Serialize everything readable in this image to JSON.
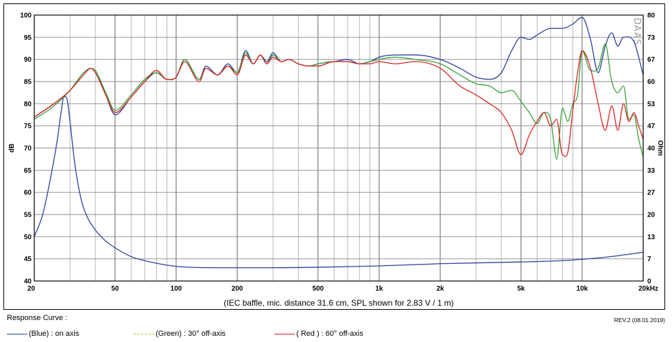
{
  "chart_data": {
    "type": "line",
    "caption": "(IEC baffle, mic. distance 31.6 cm, SPL shown for 2.83 V / 1 m)",
    "watermark": "DAAS",
    "xscale": "log",
    "xlim": [
      20,
      20000
    ],
    "x_ticks": [
      {
        "v": 20,
        "label": "20"
      },
      {
        "v": 50,
        "label": "50"
      },
      {
        "v": 100,
        "label": "100"
      },
      {
        "v": 200,
        "label": "200"
      },
      {
        "v": 500,
        "label": "500"
      },
      {
        "v": 1000,
        "label": "1k"
      },
      {
        "v": 2000,
        "label": "2k"
      },
      {
        "v": 5000,
        "label": "5k"
      },
      {
        "v": 10000,
        "label": "10k"
      },
      {
        "v": 20000,
        "label": "20kHz"
      }
    ],
    "ylabel": "dB",
    "ylim": [
      40,
      100
    ],
    "y_ticks": [
      "40",
      "45",
      "50",
      "55",
      "60",
      "65",
      "70",
      "75",
      "80",
      "85",
      "90",
      "95",
      "100"
    ],
    "y2label": "Ohm",
    "y2_ticks": [
      "0",
      "7",
      "13",
      "20",
      "27",
      "33",
      "40",
      "47",
      "53",
      "60",
      "67",
      "73",
      "80"
    ],
    "series": [
      {
        "name": "impedance",
        "color": "#2a3e9e",
        "x": [
          20,
          22,
          24,
          26,
          27,
          28,
          29,
          30,
          31,
          32,
          34,
          36,
          40,
          45,
          50,
          60,
          70,
          80,
          100,
          150,
          200,
          300,
          500,
          1000,
          2000,
          5000,
          8000,
          10000,
          12000,
          15000,
          20000
        ],
        "y": [
          50,
          55,
          63,
          72,
          77.5,
          81.5,
          81,
          76,
          70,
          65,
          58.5,
          55,
          51.5,
          49,
          47.5,
          45.5,
          44.6,
          44,
          43.3,
          43,
          43,
          43,
          43.1,
          43.4,
          43.9,
          44.3,
          44.6,
          44.9,
          45.2,
          45.7,
          46.5
        ]
      },
      {
        "name": "Blue",
        "color": "#2a3e9e",
        "x": [
          20,
          25,
          30,
          35,
          38,
          40,
          45,
          50,
          60,
          70,
          80,
          90,
          100,
          110,
          130,
          140,
          160,
          180,
          200,
          220,
          240,
          260,
          280,
          300,
          330,
          360,
          400,
          450,
          500,
          600,
          700,
          800,
          900,
          1000,
          1200,
          1500,
          2000,
          2500,
          3000,
          3500,
          4000,
          4500,
          5000,
          5500,
          6000,
          7000,
          8000,
          9000,
          10000,
          11000,
          12000,
          13000,
          14000,
          15000,
          16000,
          18000,
          20000
        ],
        "y": [
          77,
          80,
          83,
          87,
          88,
          87,
          82,
          77.5,
          81.5,
          85,
          87,
          85.5,
          86,
          90,
          85.5,
          88.5,
          86.5,
          89,
          87,
          92,
          89,
          91,
          89.5,
          91.5,
          89.5,
          90,
          89,
          88.5,
          89,
          89.5,
          90,
          89,
          89.5,
          90.5,
          91,
          91,
          90,
          88,
          86,
          85.5,
          87,
          92,
          95,
          94.5,
          95.5,
          97,
          97,
          98,
          99.5,
          94.5,
          87,
          93,
          96,
          93,
          95,
          94,
          86.5
        ]
      },
      {
        "name": "Green",
        "color": "#35a035",
        "x": [
          20,
          25,
          30,
          35,
          38,
          40,
          45,
          50,
          60,
          70,
          80,
          90,
          100,
          110,
          130,
          140,
          160,
          180,
          200,
          220,
          240,
          260,
          280,
          300,
          330,
          360,
          400,
          450,
          500,
          600,
          700,
          800,
          900,
          1000,
          1200,
          1500,
          2000,
          2500,
          3000,
          3500,
          4000,
          4500,
          5000,
          5500,
          6000,
          6500,
          7000,
          7500,
          8000,
          8500,
          9000,
          9500,
          10000,
          11000,
          12000,
          13000,
          14000,
          15000,
          16000,
          17000,
          18000,
          19000,
          20000
        ],
        "y": [
          76.5,
          79.5,
          83,
          87,
          88,
          87.5,
          82.5,
          78.5,
          82,
          85.5,
          87,
          85.5,
          86,
          90,
          85.5,
          88,
          86.5,
          88.5,
          87,
          91.5,
          89,
          91,
          89,
          91,
          89.5,
          90,
          89,
          88.5,
          89,
          89.5,
          89.5,
          89,
          89.5,
          90,
          90.5,
          90,
          89,
          86.5,
          84.5,
          84,
          82.5,
          83,
          80.5,
          78,
          75.5,
          78,
          76.5,
          67.5,
          79,
          76,
          80,
          82,
          92,
          87.5,
          88,
          93.5,
          85,
          82.5,
          84,
          76.5,
          77.5,
          72,
          68
        ]
      },
      {
        "name": "Red",
        "color": "#dd1f1f",
        "x": [
          20,
          25,
          30,
          35,
          38,
          40,
          45,
          50,
          60,
          70,
          80,
          90,
          100,
          110,
          130,
          140,
          160,
          180,
          200,
          220,
          240,
          260,
          280,
          300,
          330,
          360,
          400,
          450,
          500,
          600,
          700,
          800,
          900,
          1000,
          1200,
          1500,
          2000,
          2500,
          3000,
          3500,
          4000,
          4500,
          5000,
          5500,
          6000,
          6500,
          7000,
          7500,
          8000,
          8500,
          9000,
          9500,
          10000,
          11000,
          12000,
          13000,
          14000,
          15000,
          16000,
          17000,
          18000,
          19000,
          20000
        ],
        "y": [
          77,
          80,
          83,
          86.5,
          88,
          87,
          82,
          78,
          81.5,
          85,
          87.5,
          85.5,
          86,
          89.5,
          85,
          88,
          86.5,
          88.5,
          86.5,
          91,
          89,
          91,
          89,
          90.5,
          89.5,
          90,
          89,
          88.5,
          88.5,
          89.5,
          89.5,
          89,
          89,
          89.5,
          89,
          89.5,
          88,
          84,
          82,
          80,
          78,
          74,
          68.5,
          73,
          76,
          78,
          75,
          76.5,
          68.5,
          69,
          78.5,
          87,
          92,
          88,
          80,
          74,
          79.5,
          74,
          80,
          76,
          78,
          75,
          72
        ]
      }
    ]
  },
  "legend": {
    "title": "Response Curve :",
    "revision": "REV.2 (08.01.2019)",
    "items": [
      {
        "label": "(Blue)  : on axis",
        "color": "#2a3e9e"
      },
      {
        "label": "(Green) : 30° off-axis",
        "color": "#a8d020"
      },
      {
        "label": "( Red ) : 60° off-axis",
        "color": "#dd1f1f"
      }
    ]
  }
}
